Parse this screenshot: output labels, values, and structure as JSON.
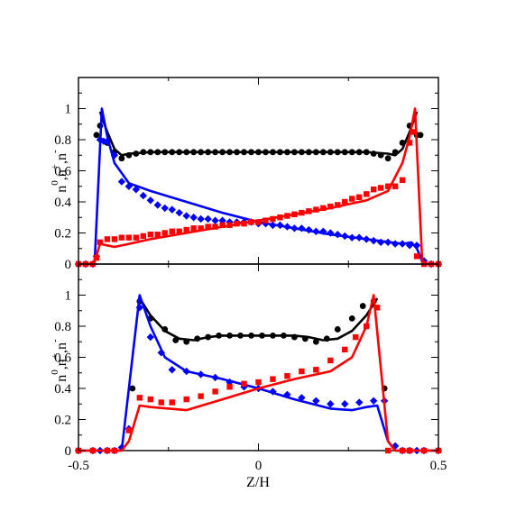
{
  "chart_data": [
    {
      "type": "line",
      "panel": "top",
      "xlim": [
        -0.5,
        0.5
      ],
      "ylim": [
        0,
        1.2
      ],
      "xticks": [
        "-0.5",
        "0",
        "0.5"
      ],
      "yticks": [
        "0",
        "0.2",
        "0.4",
        "0.6",
        "0.8",
        "1"
      ],
      "ylabel": {
        "base": [
          "n",
          ",n",
          ",n"
        ],
        "sup": [
          "0",
          "+",
          "-"
        ]
      },
      "legend": "none",
      "grid": false,
      "series": [
        {
          "color": "#000000",
          "kind": "line",
          "x": [
            -0.44,
            -0.42,
            -0.4,
            -0.38,
            -0.36,
            -0.3,
            -0.2,
            -0.1,
            0,
            0.1,
            0.2,
            0.3,
            0.36,
            0.38,
            0.4,
            0.42,
            0.44
          ],
          "y": [
            0.98,
            0.85,
            0.74,
            0.7,
            0.71,
            0.72,
            0.72,
            0.72,
            0.72,
            0.72,
            0.72,
            0.72,
            0.71,
            0.7,
            0.74,
            0.85,
            0.98
          ]
        },
        {
          "color": "#000000",
          "kind": "circle",
          "x": [
            -0.45,
            -0.44,
            -0.42,
            -0.4,
            -0.38,
            -0.36,
            -0.34,
            -0.32,
            -0.3,
            -0.28,
            -0.26,
            -0.24,
            -0.22,
            -0.2,
            -0.18,
            -0.16,
            -0.14,
            -0.12,
            -0.1,
            -0.08,
            -0.06,
            -0.04,
            -0.02,
            0,
            0.02,
            0.04,
            0.06,
            0.08,
            0.1,
            0.12,
            0.14,
            0.16,
            0.18,
            0.2,
            0.22,
            0.24,
            0.26,
            0.28,
            0.3,
            0.32,
            0.34,
            0.36,
            0.38,
            0.4,
            0.42,
            0.44,
            0.45
          ],
          "y": [
            0.83,
            0.89,
            0.78,
            0.72,
            0.68,
            0.7,
            0.71,
            0.72,
            0.72,
            0.72,
            0.72,
            0.72,
            0.72,
            0.72,
            0.72,
            0.72,
            0.72,
            0.72,
            0.72,
            0.72,
            0.72,
            0.72,
            0.72,
            0.72,
            0.72,
            0.72,
            0.72,
            0.72,
            0.72,
            0.72,
            0.72,
            0.72,
            0.72,
            0.72,
            0.72,
            0.72,
            0.72,
            0.72,
            0.72,
            0.71,
            0.7,
            0.68,
            0.72,
            0.78,
            0.89,
            0.83,
            0.83
          ]
        },
        {
          "color": "#0000ff",
          "kind": "line",
          "x": [
            -0.5,
            -0.47,
            -0.455,
            -0.435,
            -0.42,
            -0.4,
            -0.36,
            -0.3,
            -0.2,
            -0.1,
            0,
            0.1,
            0.2,
            0.3,
            0.4,
            0.425,
            0.44,
            0.455,
            0.47,
            0.5
          ],
          "y": [
            0,
            0,
            0.02,
            1.0,
            0.82,
            0.65,
            0.52,
            0.47,
            0.4,
            0.33,
            0.27,
            0.23,
            0.19,
            0.16,
            0.13,
            0.14,
            0.1,
            0.02,
            0,
            0
          ]
        },
        {
          "color": "#0000ff",
          "kind": "diamond",
          "x": [
            -0.5,
            -0.48,
            -0.46,
            -0.45,
            -0.44,
            -0.43,
            -0.42,
            -0.4,
            -0.38,
            -0.36,
            -0.34,
            -0.32,
            -0.3,
            -0.28,
            -0.26,
            -0.24,
            -0.22,
            -0.2,
            -0.18,
            -0.16,
            -0.14,
            -0.12,
            -0.1,
            -0.08,
            -0.06,
            -0.04,
            -0.02,
            0,
            0.02,
            0.04,
            0.06,
            0.08,
            0.1,
            0.12,
            0.14,
            0.16,
            0.18,
            0.2,
            0.22,
            0.24,
            0.26,
            0.28,
            0.3,
            0.32,
            0.34,
            0.36,
            0.38,
            0.4,
            0.42,
            0.44,
            0.46,
            0.48,
            0.5
          ],
          "y": [
            0,
            0,
            0,
            0.05,
            0.8,
            0.79,
            0.79,
            0.7,
            0.53,
            0.5,
            0.48,
            0.44,
            0.41,
            0.38,
            0.36,
            0.35,
            0.33,
            0.31,
            0.3,
            0.29,
            0.29,
            0.28,
            0.28,
            0.27,
            0.27,
            0.27,
            0.27,
            0.26,
            0.26,
            0.25,
            0.25,
            0.24,
            0.23,
            0.23,
            0.22,
            0.21,
            0.21,
            0.2,
            0.19,
            0.18,
            0.17,
            0.17,
            0.16,
            0.15,
            0.14,
            0.14,
            0.13,
            0.13,
            0.12,
            0.12,
            0.02,
            0,
            0
          ]
        },
        {
          "color": "#ff0000",
          "kind": "line",
          "x": [
            -0.5,
            -0.47,
            -0.455,
            -0.44,
            -0.42,
            -0.4,
            -0.36,
            -0.3,
            -0.2,
            -0.1,
            0,
            0.1,
            0.2,
            0.3,
            0.36,
            0.4,
            0.42,
            0.435,
            0.455,
            0.47,
            0.5
          ],
          "y": [
            0,
            0,
            0.02,
            0.13,
            0.12,
            0.11,
            0.13,
            0.16,
            0.2,
            0.24,
            0.28,
            0.32,
            0.36,
            0.41,
            0.47,
            0.65,
            0.82,
            1.0,
            0.02,
            0,
            0
          ]
        },
        {
          "color": "#ff0000",
          "kind": "square",
          "x": [
            -0.5,
            -0.48,
            -0.46,
            -0.45,
            -0.44,
            -0.42,
            -0.4,
            -0.38,
            -0.36,
            -0.34,
            -0.32,
            -0.3,
            -0.28,
            -0.26,
            -0.24,
            -0.22,
            -0.2,
            -0.18,
            -0.16,
            -0.14,
            -0.12,
            -0.1,
            -0.08,
            -0.06,
            -0.04,
            -0.02,
            0,
            0.02,
            0.04,
            0.06,
            0.08,
            0.1,
            0.12,
            0.14,
            0.16,
            0.18,
            0.2,
            0.22,
            0.24,
            0.26,
            0.28,
            0.3,
            0.32,
            0.34,
            0.36,
            0.38,
            0.4,
            0.42,
            0.43,
            0.44,
            0.46,
            0.48,
            0.5
          ],
          "y": [
            0,
            0,
            0,
            0.04,
            0.14,
            0.16,
            0.16,
            0.17,
            0.17,
            0.17,
            0.18,
            0.19,
            0.19,
            0.2,
            0.21,
            0.21,
            0.22,
            0.23,
            0.23,
            0.24,
            0.24,
            0.25,
            0.25,
            0.26,
            0.26,
            0.27,
            0.27,
            0.28,
            0.29,
            0.3,
            0.31,
            0.32,
            0.33,
            0.34,
            0.35,
            0.36,
            0.37,
            0.38,
            0.4,
            0.42,
            0.43,
            0.45,
            0.48,
            0.49,
            0.5,
            0.5,
            0.54,
            0.78,
            0.85,
            0.05,
            0,
            0,
            0
          ]
        }
      ]
    },
    {
      "type": "line",
      "panel": "bottom",
      "xlim": [
        -0.5,
        0.5
      ],
      "ylim": [
        0,
        1.2
      ],
      "xticks": [
        "-0.5",
        "0",
        "0.5"
      ],
      "yticks": [
        "0",
        "0.2",
        "0.4",
        "0.6",
        "0.8",
        "1"
      ],
      "xlabel": "Z/H",
      "ylabel": {
        "base": [
          "n",
          ",n",
          ",n"
        ],
        "sup": [
          "0",
          "+",
          "-"
        ]
      },
      "legend": "none",
      "grid": false,
      "series": [
        {
          "color": "#000000",
          "kind": "line",
          "x": [
            -0.33,
            -0.3,
            -0.26,
            -0.22,
            -0.18,
            -0.14,
            -0.1,
            0,
            0.1,
            0.14,
            0.18,
            0.22,
            0.26,
            0.3,
            0.33
          ],
          "y": [
            0.98,
            0.87,
            0.77,
            0.72,
            0.71,
            0.73,
            0.74,
            0.74,
            0.74,
            0.73,
            0.71,
            0.72,
            0.77,
            0.87,
            0.98
          ]
        },
        {
          "color": "#000000",
          "kind": "circle",
          "x": [
            -0.35,
            -0.33,
            -0.3,
            -0.26,
            -0.23,
            -0.2,
            -0.17,
            -0.14,
            -0.11,
            -0.08,
            -0.05,
            -0.02,
            0.01,
            0.04,
            0.07,
            0.1,
            0.13,
            0.16,
            0.19,
            0.22,
            0.26,
            0.29,
            0.32,
            0.35
          ],
          "y": [
            0.4,
            0.96,
            0.85,
            0.78,
            0.71,
            0.7,
            0.72,
            0.73,
            0.74,
            0.74,
            0.74,
            0.74,
            0.74,
            0.74,
            0.74,
            0.73,
            0.72,
            0.7,
            0.72,
            0.78,
            0.85,
            0.93,
            0.96,
            0.4
          ]
        },
        {
          "color": "#0000ff",
          "kind": "line",
          "x": [
            -0.5,
            -0.4,
            -0.38,
            -0.33,
            -0.3,
            -0.26,
            -0.2,
            -0.1,
            0,
            0.1,
            0.2,
            0.26,
            0.3,
            0.33,
            0.36,
            0.38,
            0.4,
            0.5
          ],
          "y": [
            0,
            0,
            0.0,
            1.0,
            0.8,
            0.6,
            0.51,
            0.46,
            0.4,
            0.33,
            0.27,
            0.26,
            0.28,
            0.29,
            0.06,
            0.0,
            0,
            0
          ]
        },
        {
          "color": "#0000ff",
          "kind": "diamond",
          "x": [
            -0.5,
            -0.46,
            -0.44,
            -0.42,
            -0.4,
            -0.38,
            -0.36,
            -0.33,
            -0.3,
            -0.27,
            -0.24,
            -0.2,
            -0.16,
            -0.12,
            -0.08,
            -0.04,
            0,
            0.04,
            0.08,
            0.12,
            0.16,
            0.2,
            0.24,
            0.28,
            0.32,
            0.35,
            0.38,
            0.4,
            0.42,
            0.44,
            0.46,
            0.5
          ],
          "y": [
            0,
            0,
            0,
            0,
            0,
            0.02,
            0.14,
            0.92,
            0.73,
            0.63,
            0.52,
            0.51,
            0.49,
            0.47,
            0.44,
            0.41,
            0.4,
            0.38,
            0.36,
            0.34,
            0.32,
            0.3,
            0.3,
            0.31,
            0.32,
            0.32,
            0.03,
            0,
            0,
            0,
            0,
            0
          ]
        },
        {
          "color": "#ff0000",
          "kind": "line",
          "x": [
            -0.5,
            -0.4,
            -0.38,
            -0.36,
            -0.33,
            -0.3,
            -0.2,
            -0.1,
            0,
            0.1,
            0.2,
            0.26,
            0.3,
            0.32,
            0.36,
            0.38,
            0.4,
            0.5
          ],
          "y": [
            0,
            0,
            0.0,
            0.06,
            0.29,
            0.28,
            0.26,
            0.33,
            0.4,
            0.46,
            0.51,
            0.6,
            0.8,
            1.0,
            0.06,
            0.0,
            0,
            0
          ]
        },
        {
          "color": "#ff0000",
          "kind": "square",
          "x": [
            -0.5,
            -0.46,
            -0.42,
            -0.4,
            -0.36,
            -0.33,
            -0.3,
            -0.27,
            -0.24,
            -0.2,
            -0.16,
            -0.12,
            -0.08,
            -0.04,
            0,
            0.04,
            0.08,
            0.12,
            0.16,
            0.2,
            0.24,
            0.27,
            0.3,
            0.33,
            0.36,
            0.4,
            0.42,
            0.46,
            0.5
          ],
          "y": [
            0,
            0,
            0,
            0,
            0.13,
            0.34,
            0.33,
            0.31,
            0.31,
            0.33,
            0.35,
            0.38,
            0.41,
            0.43,
            0.44,
            0.46,
            0.48,
            0.51,
            0.52,
            0.58,
            0.65,
            0.73,
            0.8,
            0.92,
            0.0,
            0,
            0,
            0,
            0
          ]
        }
      ]
    }
  ]
}
